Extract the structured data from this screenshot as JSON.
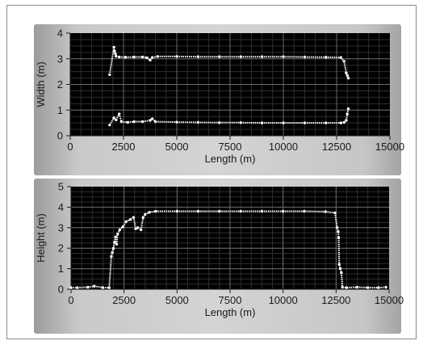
{
  "chart_data": [
    {
      "type": "scatter",
      "xlabel": "Length (m)",
      "ylabel": "Width (m)",
      "xlim": [
        0,
        15000
      ],
      "ylim": [
        0,
        4
      ],
      "x_ticks": [
        "0",
        "2500",
        "5000",
        "7500",
        "10000",
        "12500",
        "15000"
      ],
      "y_ticks": [
        "0",
        "1",
        "2",
        "3",
        "4"
      ],
      "grid": true,
      "background": "#000000",
      "marker_color": "#ffffff",
      "series": [
        {
          "points": [
            [
              1850,
              2.38
            ],
            [
              2050,
              3.45
            ],
            [
              2080,
              3.3
            ],
            [
              2120,
              3.2
            ],
            [
              2150,
              3.1
            ],
            [
              2300,
              3.07
            ],
            [
              2600,
              3.06
            ],
            [
              3000,
              3.07
            ],
            [
              3400,
              3.07
            ],
            [
              3600,
              3.04
            ],
            [
              3750,
              2.95
            ],
            [
              3850,
              3.05
            ],
            [
              4100,
              3.09
            ],
            [
              5000,
              3.09
            ],
            [
              6000,
              3.08
            ],
            [
              7000,
              3.08
            ],
            [
              8000,
              3.08
            ],
            [
              9000,
              3.08
            ],
            [
              10000,
              3.08
            ],
            [
              11000,
              3.07
            ],
            [
              12000,
              3.06
            ],
            [
              12700,
              3.05
            ],
            [
              12850,
              2.9
            ],
            [
              12950,
              2.45
            ],
            [
              13000,
              2.35
            ],
            [
              13050,
              2.25
            ]
          ]
        },
        {
          "points": [
            [
              1850,
              0.42
            ],
            [
              2050,
              0.7
            ],
            [
              2150,
              0.62
            ],
            [
              2300,
              0.85
            ],
            [
              2400,
              0.55
            ],
            [
              2700,
              0.52
            ],
            [
              3000,
              0.55
            ],
            [
              3400,
              0.55
            ],
            [
              3750,
              0.6
            ],
            [
              3850,
              0.66
            ],
            [
              4000,
              0.55
            ],
            [
              5000,
              0.53
            ],
            [
              6000,
              0.52
            ],
            [
              7000,
              0.51
            ],
            [
              8000,
              0.51
            ],
            [
              9000,
              0.5
            ],
            [
              10000,
              0.5
            ],
            [
              11000,
              0.5
            ],
            [
              12000,
              0.5
            ],
            [
              12700,
              0.5
            ],
            [
              12850,
              0.52
            ],
            [
              12950,
              0.6
            ],
            [
              13000,
              0.85
            ],
            [
              13050,
              1.05
            ]
          ]
        }
      ]
    },
    {
      "type": "scatter",
      "xlabel": "Length (m)",
      "ylabel": "Height (m)",
      "xlim": [
        0,
        15000
      ],
      "ylim": [
        0,
        5
      ],
      "x_ticks": [
        "0",
        "2500",
        "5000",
        "7500",
        "10000",
        "12500",
        "15000"
      ],
      "y_ticks": [
        "0",
        "1",
        "2",
        "3",
        "4",
        "5"
      ],
      "grid": true,
      "background": "#000000",
      "marker_color": "#ffffff",
      "series": [
        {
          "points": [
            [
              0,
              0.08
            ],
            [
              300,
              0.08
            ],
            [
              800,
              0.1
            ],
            [
              1100,
              0.15
            ],
            [
              1500,
              0.08
            ],
            [
              1800,
              0.08
            ],
            [
              1900,
              1.6
            ],
            [
              1950,
              1.8
            ],
            [
              2000,
              2.0
            ],
            [
              2050,
              2.3
            ],
            [
              2100,
              2.55
            ],
            [
              2150,
              2.2
            ],
            [
              2200,
              2.7
            ],
            [
              2300,
              2.9
            ],
            [
              2450,
              3.05
            ],
            [
              2600,
              3.3
            ],
            [
              2800,
              3.4
            ],
            [
              2950,
              3.5
            ],
            [
              3050,
              2.95
            ],
            [
              3150,
              3.0
            ],
            [
              3300,
              2.9
            ],
            [
              3400,
              3.5
            ],
            [
              3500,
              3.65
            ],
            [
              3700,
              3.75
            ],
            [
              4000,
              3.8
            ],
            [
              5000,
              3.8
            ],
            [
              6000,
              3.8
            ],
            [
              7000,
              3.8
            ],
            [
              8000,
              3.8
            ],
            [
              9000,
              3.8
            ],
            [
              10000,
              3.8
            ],
            [
              11000,
              3.8
            ],
            [
              12000,
              3.78
            ],
            [
              12450,
              3.72
            ],
            [
              12550,
              3.0
            ],
            [
              12600,
              2.8
            ],
            [
              12620,
              2.5
            ],
            [
              12650,
              1.2
            ],
            [
              12700,
              1.0
            ],
            [
              12750,
              0.8
            ],
            [
              12800,
              0.1
            ],
            [
              13000,
              0.08
            ],
            [
              13500,
              0.1
            ],
            [
              14000,
              0.08
            ],
            [
              14500,
              0.08
            ],
            [
              14850,
              0.1
            ]
          ]
        }
      ]
    }
  ]
}
